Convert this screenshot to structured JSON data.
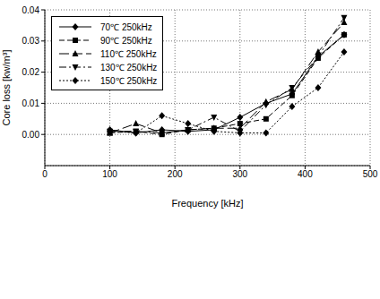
{
  "chart_data": {
    "type": "line",
    "x_label": "Frequency [kHz]",
    "y_label": "Core loss [kw/m³]",
    "x": [
      100,
      140,
      180,
      220,
      260,
      300,
      340,
      380,
      420,
      460
    ],
    "series": [
      {
        "name": "70℃ 250kHz",
        "color": "#000000",
        "marker": "diamond",
        "line_style": "solid",
        "values": [
          0.0015,
          0.0005,
          0.0015,
          0.001,
          0.0015,
          0.0055,
          0.01,
          0.013,
          0.025,
          0.032
        ]
      },
      {
        "name": "90℃ 250kHz",
        "color": "#000000",
        "marker": "square",
        "line_style": "dashed",
        "values": [
          0.0005,
          0.001,
          0.0,
          0.0015,
          0.002,
          0.0035,
          0.005,
          0.0125,
          0.0245,
          0.032
        ]
      },
      {
        "name": "110℃ 250kHz",
        "color": "#000000",
        "marker": "triangle",
        "line_style": "long_dash",
        "values": [
          0.0005,
          0.0035,
          0.0005,
          0.0015,
          0.002,
          0.002,
          0.0105,
          0.0145,
          0.0265,
          0.036
        ]
      },
      {
        "name": "130℃ 250kHz",
        "color": "#000000",
        "marker": "triangle_down",
        "line_style": "dash_dot",
        "values": [
          0.001,
          0.001,
          0.0005,
          0.0015,
          0.0055,
          0.001,
          0.0095,
          0.015,
          0.025,
          0.0375
        ]
      },
      {
        "name": "150℃ 250kHz",
        "color": "#000000",
        "marker": "diamond",
        "line_style": "dotted",
        "values": [
          0.001,
          0.0005,
          0.006,
          0.0035,
          0.001,
          0.0005,
          0.0005,
          0.009,
          0.015,
          0.0265
        ]
      }
    ],
    "xlim": [
      0,
      500
    ],
    "xticks": [
      0,
      100,
      200,
      300,
      400,
      500
    ],
    "ylim": [
      -0.01,
      0.04
    ],
    "yticks": [
      {
        "value": 0,
        "label": "0.00"
      },
      {
        "value": 0.01,
        "label": "0.01"
      },
      {
        "value": 0.02,
        "label": "0.02"
      },
      {
        "value": 0.03,
        "label": "0.03"
      },
      {
        "value": 0.04,
        "label": "0.04"
      }
    ],
    "grid": true,
    "legend": "upper left"
  }
}
